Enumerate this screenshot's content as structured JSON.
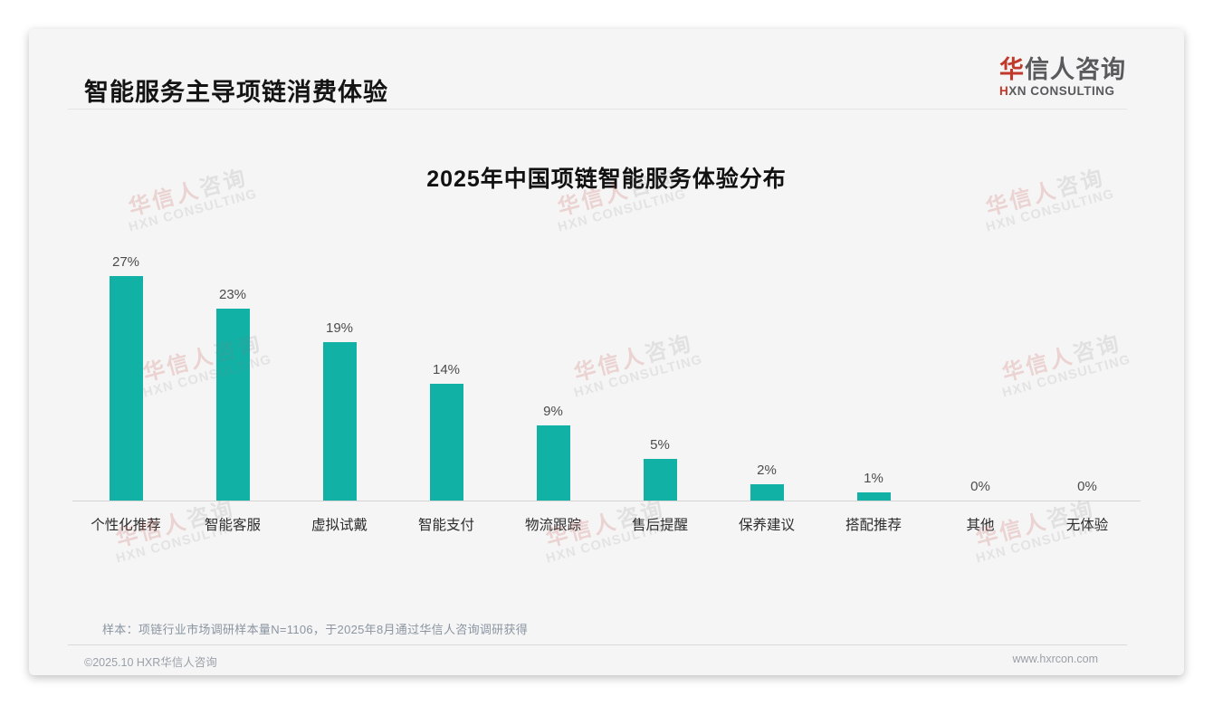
{
  "page": {
    "title": "智能服务主导项链消费体验"
  },
  "logo": {
    "cn_accent": "华",
    "cn_rest": "信人咨询",
    "en_accent": "H",
    "en_rest": "XN CONSULTING"
  },
  "chart_data": {
    "type": "bar",
    "title": "2025年中国项链智能服务体验分布",
    "categories": [
      "个性化推荐",
      "智能客服",
      "虚拟试戴",
      "智能支付",
      "物流跟踪",
      "售后提醒",
      "保养建议",
      "搭配推荐",
      "其他",
      "无体验"
    ],
    "values": [
      27,
      23,
      19,
      14,
      9,
      5,
      2,
      1,
      0,
      0
    ],
    "labels": [
      "27%",
      "23%",
      "19%",
      "14%",
      "9%",
      "5%",
      "2%",
      "1%",
      "0%",
      "0%"
    ],
    "unit": "%",
    "ylim": [
      0,
      30
    ],
    "grid": false,
    "legend": "none",
    "value_labels_position": "above-bar",
    "bar_color": "#12b1a6"
  },
  "footnote": "样本：项链行业市场调研样本量N=1106，于2025年8月通过华信人咨询调研获得",
  "footer": {
    "left": "©2025.10 HXR华信人咨询",
    "right": "www.hxrcon.com"
  },
  "watermark": {
    "cn_accent": "华信人",
    "cn_rest": "咨询",
    "en": "HXN CONSULTING"
  },
  "colors": {
    "bar": "#12b1a6",
    "brand_red": "#c0392b",
    "logo_gray": "#5a5a5c",
    "card_bg": "#f5f5f6"
  }
}
